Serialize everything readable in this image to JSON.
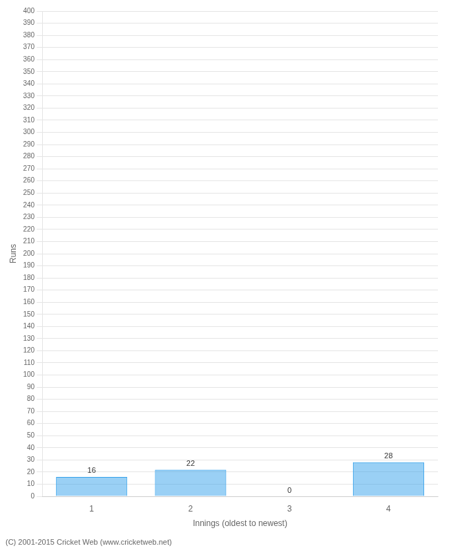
{
  "chart_data": {
    "type": "bar",
    "categories": [
      "1",
      "2",
      "3",
      "4"
    ],
    "values": [
      16,
      22,
      0,
      28
    ],
    "xlabel": "Innings (oldest to newest)",
    "ylabel": "Runs",
    "ylim": [
      0,
      400
    ],
    "yticks": [
      0,
      10,
      20,
      30,
      40,
      50,
      60,
      70,
      80,
      90,
      100,
      110,
      120,
      130,
      140,
      150,
      160,
      170,
      180,
      190,
      200,
      210,
      220,
      230,
      240,
      250,
      260,
      270,
      280,
      290,
      300,
      310,
      320,
      330,
      340,
      350,
      360,
      370,
      380,
      390,
      400
    ],
    "grid": "y",
    "data_labels": true,
    "annotations": [
      "(C) 2001-2015 Cricket Web (www.cricketweb.net)"
    ]
  }
}
